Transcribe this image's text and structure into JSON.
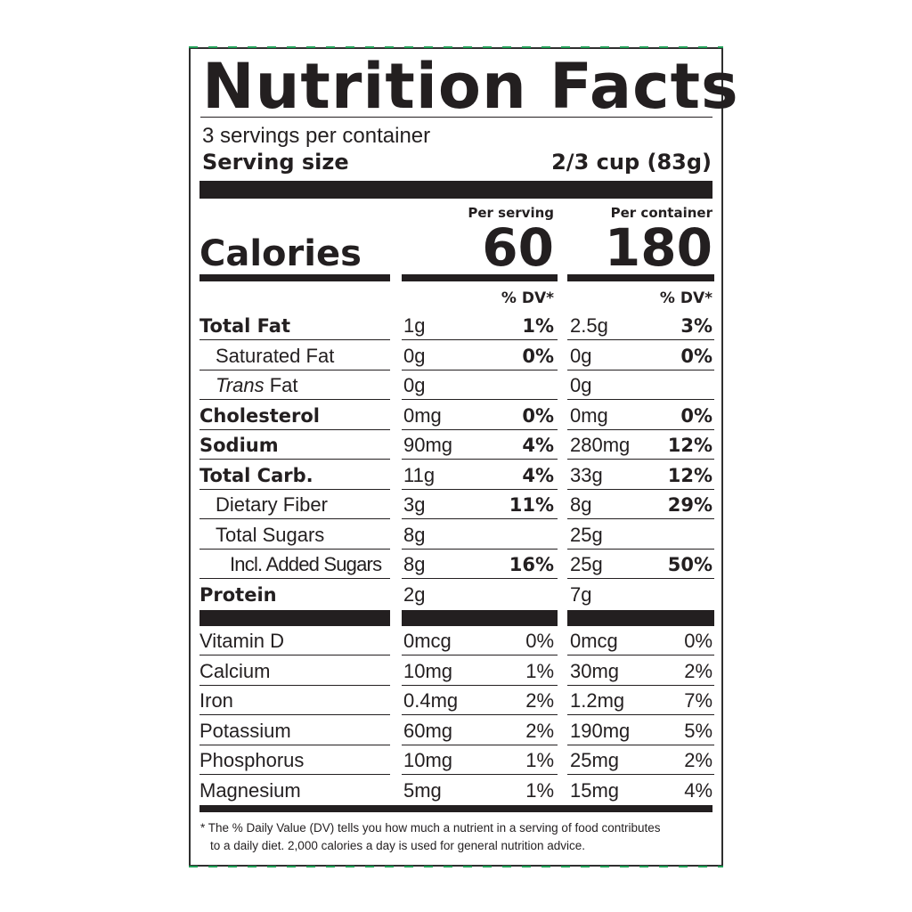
{
  "label": {
    "title": "Nutrition Facts",
    "servings": "3 servings per container",
    "serving_size_label": "Serving size",
    "serving_size_value": "2/3 cup (83g)",
    "per_serving_label": "Per serving",
    "per_container_label": "Per container",
    "calories_label": "Calories",
    "calories_serving": "60",
    "calories_container": "180",
    "dv_label": "% DV*"
  },
  "nutrients": [
    {
      "name": "Total Fat",
      "style": "bold",
      "serving_amt": "1g",
      "serving_dv": "1%",
      "container_amt": "2.5g",
      "container_dv": "3%"
    },
    {
      "name": "Saturated Fat",
      "style": "indent1",
      "serving_amt": "0g",
      "serving_dv": "0%",
      "container_amt": "0g",
      "container_dv": "0%"
    },
    {
      "name_italic": "Trans",
      "name_rest": " Fat",
      "style": "indent1",
      "serving_amt": "0g",
      "serving_dv": "",
      "container_amt": "0g",
      "container_dv": ""
    },
    {
      "name": "Cholesterol",
      "style": "bold",
      "serving_amt": "0mg",
      "serving_dv": "0%",
      "container_amt": "0mg",
      "container_dv": "0%"
    },
    {
      "name": "Sodium",
      "style": "bold",
      "serving_amt": "90mg",
      "serving_dv": "4%",
      "container_amt": "280mg",
      "container_dv": "12%"
    },
    {
      "name": "Total Carb.",
      "style": "bold",
      "serving_amt": "11g",
      "serving_dv": "4%",
      "container_amt": "33g",
      "container_dv": "12%"
    },
    {
      "name": "Dietary Fiber",
      "style": "indent1",
      "serving_amt": "3g",
      "serving_dv": "11%",
      "container_amt": "8g",
      "container_dv": "29%"
    },
    {
      "name": "Total Sugars",
      "style": "indent1",
      "serving_amt": "8g",
      "serving_dv": "",
      "container_amt": "25g",
      "container_dv": ""
    },
    {
      "name": "Incl. Added Sugars",
      "style": "indent2",
      "serving_amt": "8g",
      "serving_dv": "16%",
      "container_amt": "25g",
      "container_dv": "50%"
    },
    {
      "name": "Protein",
      "style": "bold",
      "serving_amt": "2g",
      "serving_dv": "",
      "container_amt": "7g",
      "container_dv": ""
    }
  ],
  "vitamins": [
    {
      "name": "Vitamin D",
      "serving_amt": "0mcg",
      "serving_dv": "0%",
      "container_amt": "0mcg",
      "container_dv": "0%"
    },
    {
      "name": "Calcium",
      "serving_amt": "10mg",
      "serving_dv": "1%",
      "container_amt": "30mg",
      "container_dv": "2%"
    },
    {
      "name": "Iron",
      "serving_amt": "0.4mg",
      "serving_dv": "2%",
      "container_amt": "1.2mg",
      "container_dv": "7%"
    },
    {
      "name": "Potassium",
      "serving_amt": "60mg",
      "serving_dv": "2%",
      "container_amt": "190mg",
      "container_dv": "5%"
    },
    {
      "name": "Phosphorus",
      "serving_amt": "10mg",
      "serving_dv": "1%",
      "container_amt": "25mg",
      "container_dv": "2%"
    },
    {
      "name": "Magnesium",
      "serving_amt": "5mg",
      "serving_dv": "1%",
      "container_amt": "15mg",
      "container_dv": "4%"
    }
  ],
  "footnote": {
    "line1": "* The % Daily Value (DV) tells you how much a nutrient in a serving of food contributes",
    "line2": "to a daily diet. 2,000 calories a day is used for general nutrition advice."
  },
  "colors": {
    "ink": "#231f20",
    "border_dash": "#1f9d55"
  }
}
